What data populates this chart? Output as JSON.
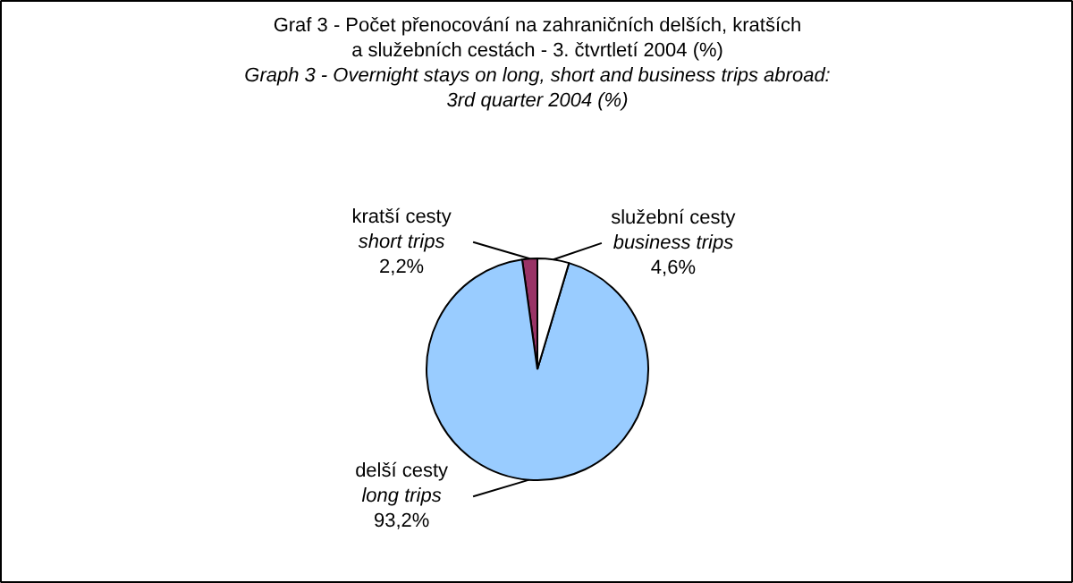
{
  "chart_data": {
    "type": "pie",
    "title": "Graf 3 - Počet přenocování na zahraničních delších, kratších a služebních cestách - 3. čtvrtletí 2004 (%)",
    "subtitle": "Graph 3 - Overnight stays on long, short and business trips abroad: 3rd quarter 2004 (%)",
    "categories": [
      "kratší cesty\nshort trips",
      "delší cesty\nlong trips",
      "služební cesty\nbusiness trips"
    ],
    "values": [
      2.2,
      93.2,
      4.6
    ],
    "colors": [
      "#993366",
      "#99ccff",
      "#ffffff"
    ],
    "value_labels": [
      "2,2%",
      "93,2%",
      "4,6%"
    ]
  }
}
